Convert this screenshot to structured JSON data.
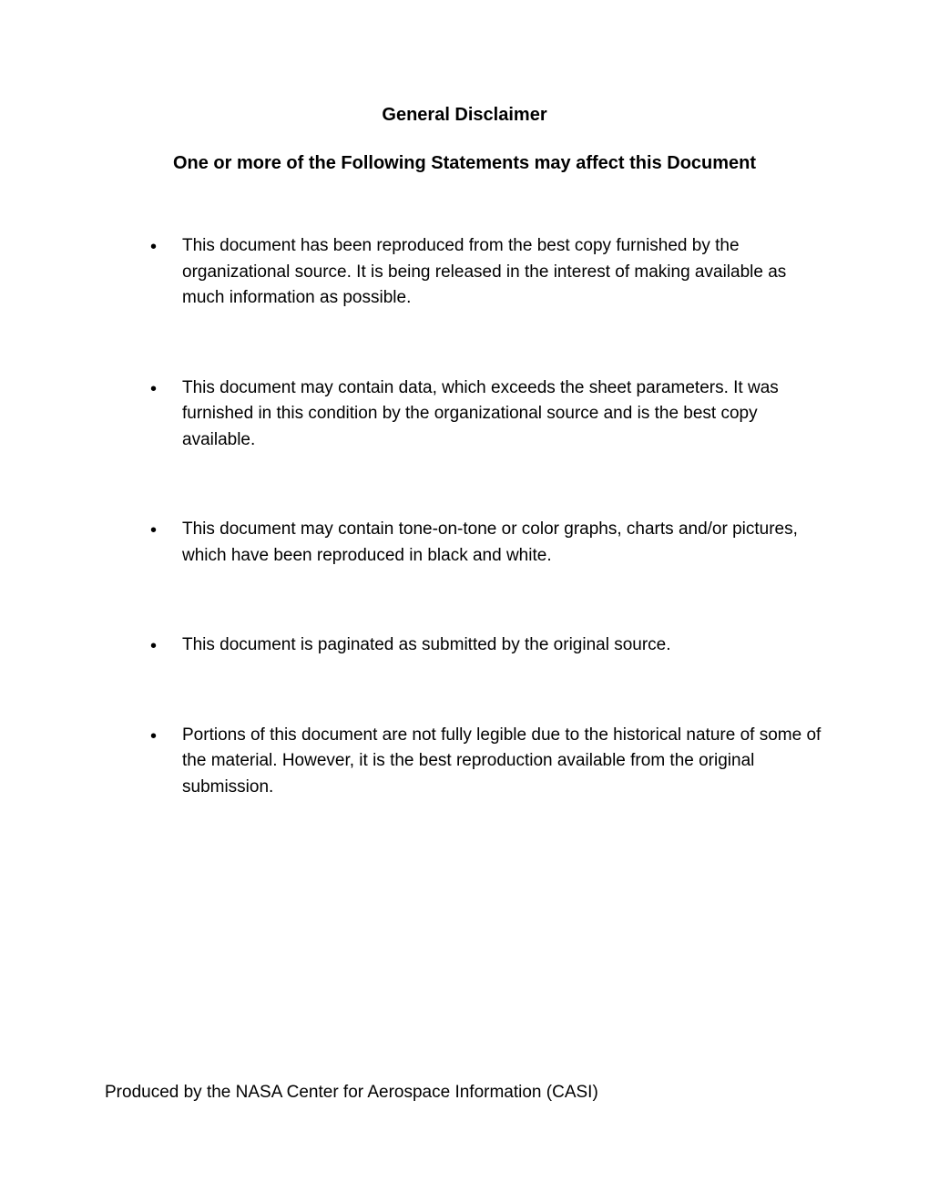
{
  "title": "General Disclaimer",
  "subtitle": "One or more of the Following Statements may affect this Document",
  "bullets": [
    "This document has been reproduced from the best copy furnished by the organizational source. It is being released in the interest of making available as much information as possible.",
    "This document may contain data, which exceeds the sheet parameters. It was furnished in this condition by the organizational source and is the best copy available.",
    "This document may contain tone-on-tone or color graphs, charts and/or pictures, which have been reproduced in black and white.",
    "This document is paginated as submitted by the original source.",
    "Portions of this document are not fully legible due to the historical nature of some of the material. However, it is the best reproduction available from the original submission."
  ],
  "footer": "Produced by the NASA Center for Aerospace Information (CASI)"
}
